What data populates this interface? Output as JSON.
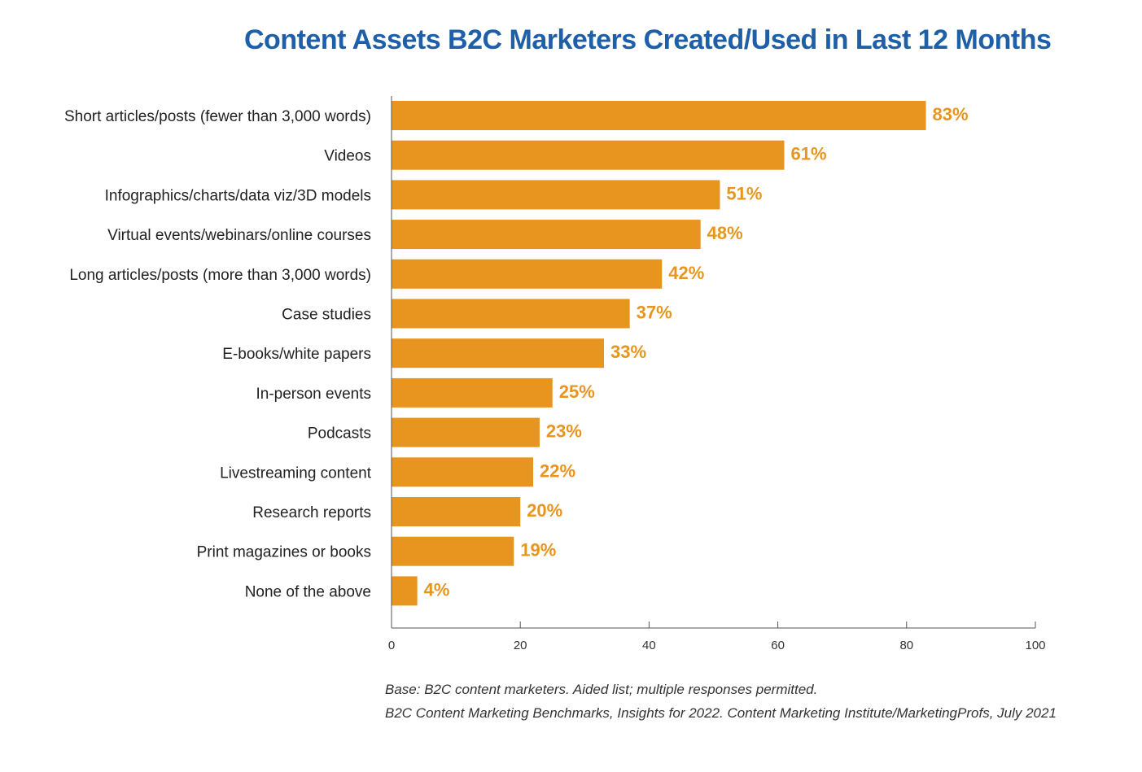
{
  "chart_data": {
    "type": "bar",
    "orientation": "horizontal",
    "title": "Content Assets B2C Marketers Created/Used in Last 12 Months",
    "categories": [
      "Short articles/posts (fewer than 3,000 words)",
      "Videos",
      "Infographics/charts/data viz/3D models",
      "Virtual events/webinars/online courses",
      "Long articles/posts (more than 3,000 words)",
      "Case studies",
      "E-books/white papers",
      "In-person events",
      "Podcasts",
      "Livestreaming content",
      "Research reports",
      "Print magazines or books",
      "None of the above"
    ],
    "values": [
      83,
      61,
      51,
      48,
      42,
      37,
      33,
      25,
      23,
      22,
      20,
      19,
      4
    ],
    "value_labels": [
      "83%",
      "61%",
      "51%",
      "48%",
      "42%",
      "37%",
      "33%",
      "25%",
      "23%",
      "22%",
      "20%",
      "19%",
      "4%"
    ],
    "xlim": [
      0,
      100
    ],
    "xticks": [
      0,
      20,
      40,
      60,
      80,
      100
    ],
    "xlabel": "",
    "ylabel": "",
    "grid": false,
    "legend": "none",
    "bar_color": "#e8951f",
    "value_label_color": "#e8951f"
  },
  "notes": {
    "base": "Base: B2C content marketers. Aided list; multiple responses permitted.",
    "source": "B2C Content Marketing Benchmarks, Insights for 2022. Content Marketing Institute/MarketingProfs, July 2021"
  },
  "colors": {
    "title": "#1f5fa8"
  }
}
